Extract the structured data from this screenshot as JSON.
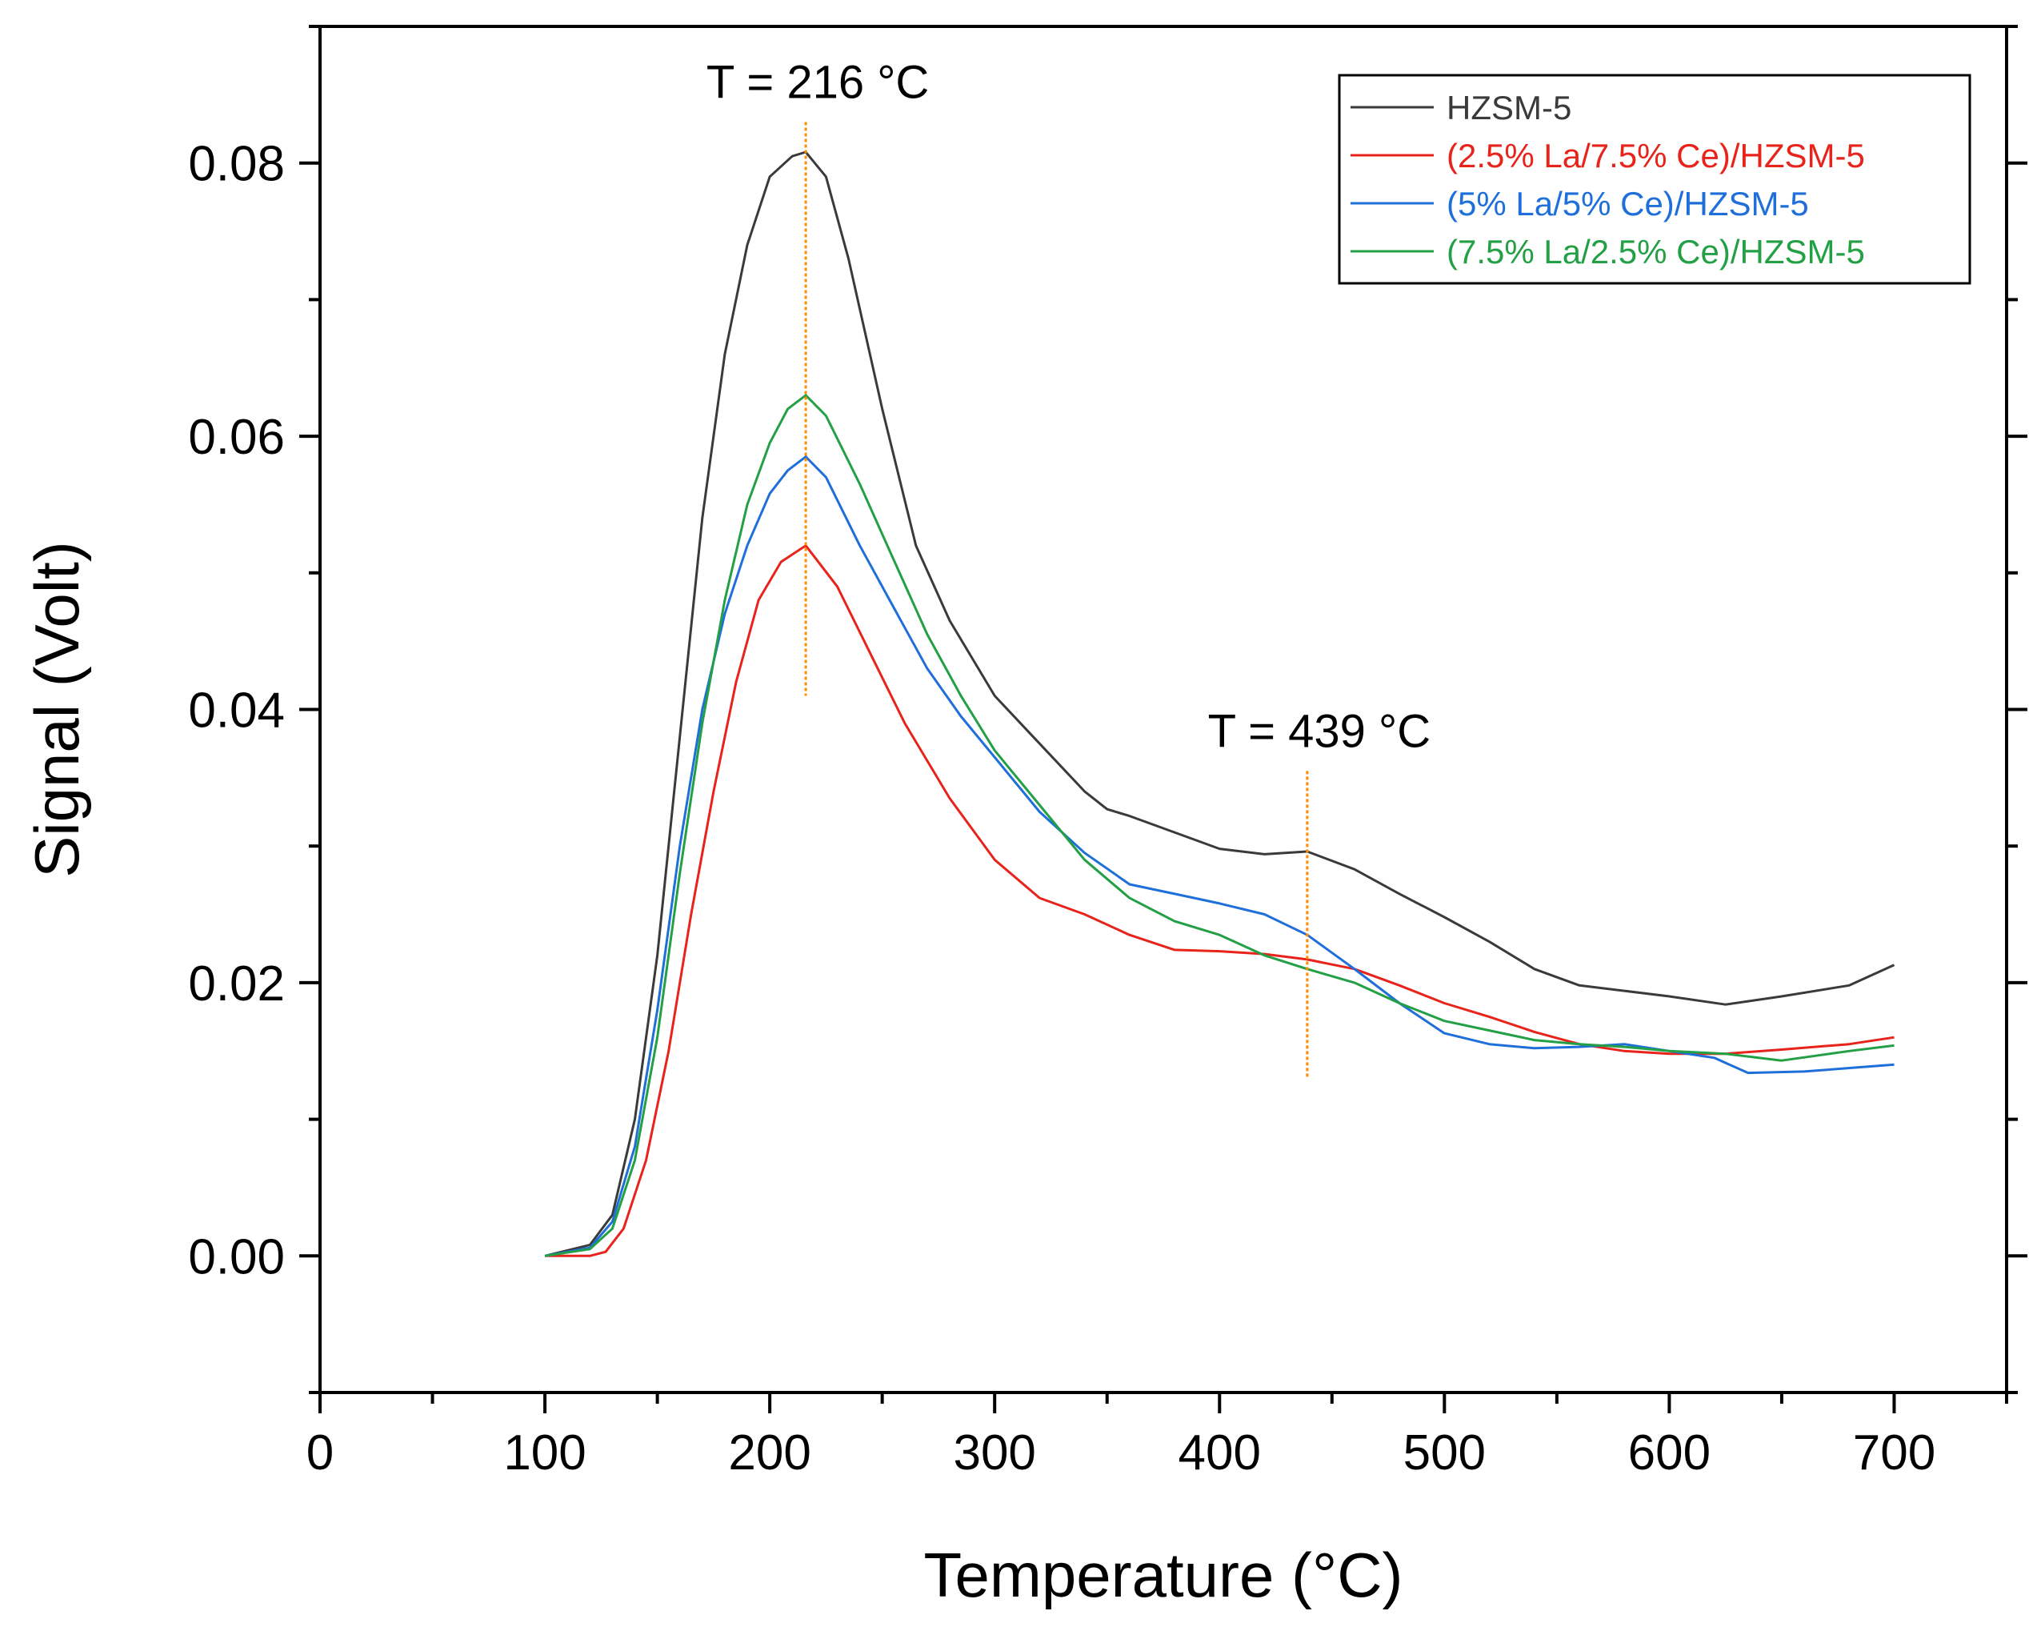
{
  "chart_data": {
    "type": "line",
    "title": "",
    "xlabel": "Temperature (°C)",
    "ylabel": "Signal (Volt)",
    "xlim": [
      0,
      750
    ],
    "ylim": [
      -0.01,
      0.09
    ],
    "xticks": [
      0,
      100,
      200,
      300,
      400,
      500,
      600,
      700
    ],
    "xtick_labels": [
      "0",
      "100",
      "200",
      "300",
      "400",
      "500",
      "600",
      "700"
    ],
    "yticks": [
      0.0,
      0.02,
      0.04,
      0.06,
      0.08
    ],
    "ytick_labels": [
      "0.00",
      "0.02",
      "0.04",
      "0.06",
      "0.08"
    ],
    "grid": false,
    "legend_position": "top-right",
    "annotations": [
      {
        "text": "T = 216 °C",
        "x": 216,
        "y_line": [
          0.041,
          0.083
        ],
        "color": "#ff8c00"
      },
      {
        "text": "T = 439 °C",
        "x": 439,
        "y_line": [
          0.013,
          0.0355
        ],
        "color": "#ff8c00"
      }
    ],
    "series": [
      {
        "name": "HZSM-5",
        "color": "#3a3a3a",
        "x": [
          100,
          120,
          130,
          140,
          150,
          160,
          170,
          180,
          190,
          200,
          210,
          216,
          225,
          235,
          250,
          265,
          280,
          300,
          320,
          340,
          350,
          360,
          380,
          400,
          420,
          439,
          460,
          480,
          500,
          520,
          540,
          560,
          580,
          600,
          625,
          650,
          680,
          700
        ],
        "y": [
          0.0,
          0.0008,
          0.003,
          0.01,
          0.022,
          0.038,
          0.054,
          0.066,
          0.074,
          0.079,
          0.0805,
          0.0808,
          0.079,
          0.073,
          0.062,
          0.052,
          0.0465,
          0.041,
          0.0375,
          0.034,
          0.0327,
          0.0322,
          0.031,
          0.0298,
          0.0294,
          0.0296,
          0.0283,
          0.0265,
          0.0248,
          0.023,
          0.021,
          0.0198,
          0.0194,
          0.019,
          0.0184,
          0.019,
          0.0198,
          0.0213
        ]
      },
      {
        "name": "(2.5% La/7.5% Ce)/HZSM-5",
        "color": "#e8231b",
        "x": [
          100,
          120,
          127,
          135,
          145,
          155,
          165,
          175,
          185,
          195,
          205,
          216,
          230,
          245,
          260,
          280,
          300,
          320,
          340,
          360,
          380,
          400,
          420,
          439,
          460,
          480,
          500,
          520,
          540,
          560,
          580,
          600,
          625,
          650,
          680,
          700
        ],
        "y": [
          0.0,
          0.0,
          0.0003,
          0.002,
          0.007,
          0.015,
          0.025,
          0.034,
          0.042,
          0.048,
          0.0508,
          0.052,
          0.049,
          0.044,
          0.039,
          0.0335,
          0.029,
          0.0262,
          0.025,
          0.0235,
          0.0224,
          0.0223,
          0.0221,
          0.0217,
          0.021,
          0.0198,
          0.0185,
          0.0175,
          0.0164,
          0.0155,
          0.015,
          0.0148,
          0.0148,
          0.0151,
          0.0155,
          0.016
        ]
      },
      {
        "name": "(5% La/5% Ce)/HZSM-5",
        "color": "#1e6fd9",
        "x": [
          100,
          120,
          130,
          140,
          150,
          160,
          170,
          180,
          190,
          200,
          208,
          216,
          225,
          240,
          255,
          270,
          285,
          300,
          320,
          340,
          360,
          380,
          400,
          420,
          439,
          460,
          480,
          500,
          520,
          540,
          560,
          580,
          600,
          620,
          635,
          660,
          700
        ],
        "y": [
          0.0,
          0.0006,
          0.0025,
          0.008,
          0.018,
          0.03,
          0.04,
          0.047,
          0.052,
          0.0558,
          0.0575,
          0.0585,
          0.057,
          0.052,
          0.0475,
          0.043,
          0.0395,
          0.0365,
          0.0325,
          0.0295,
          0.0272,
          0.0265,
          0.0258,
          0.025,
          0.0235,
          0.021,
          0.0185,
          0.0163,
          0.0155,
          0.0152,
          0.0153,
          0.0155,
          0.015,
          0.0145,
          0.0134,
          0.0135,
          0.014
        ]
      },
      {
        "name": "(7.5% La/2.5% Ce)/HZSM-5",
        "color": "#23a045",
        "x": [
          100,
          120,
          130,
          140,
          150,
          160,
          170,
          180,
          190,
          200,
          208,
          216,
          225,
          240,
          255,
          270,
          285,
          300,
          320,
          340,
          360,
          380,
          400,
          420,
          439,
          460,
          480,
          500,
          520,
          540,
          560,
          580,
          600,
          625,
          650,
          680,
          700
        ],
        "y": [
          0.0,
          0.0005,
          0.002,
          0.007,
          0.016,
          0.028,
          0.039,
          0.048,
          0.055,
          0.0595,
          0.062,
          0.063,
          0.0615,
          0.0565,
          0.051,
          0.0455,
          0.041,
          0.037,
          0.033,
          0.029,
          0.0262,
          0.0245,
          0.0235,
          0.022,
          0.021,
          0.02,
          0.0185,
          0.0172,
          0.0165,
          0.0158,
          0.0155,
          0.0153,
          0.015,
          0.0148,
          0.0143,
          0.015,
          0.0154
        ]
      }
    ]
  }
}
